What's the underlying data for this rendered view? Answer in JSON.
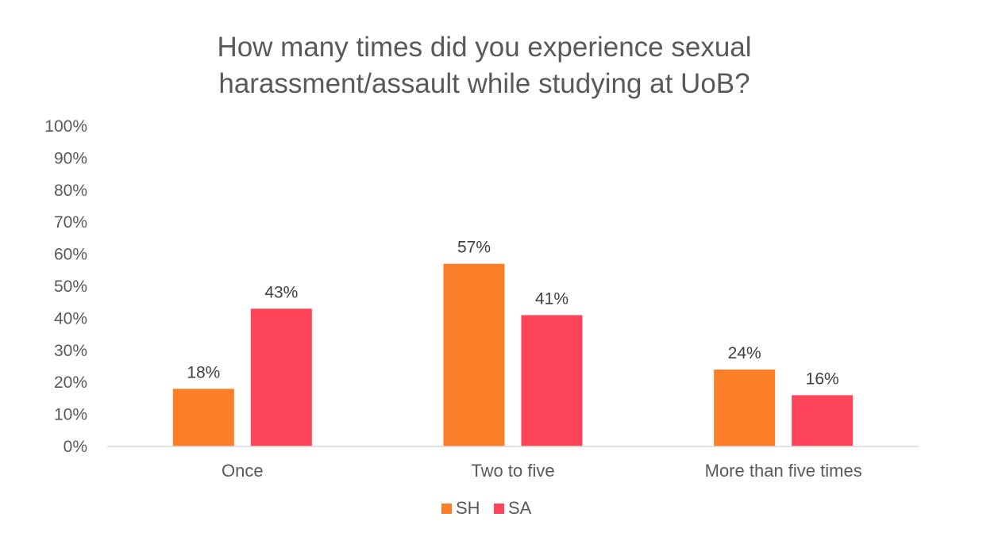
{
  "chart_data": {
    "type": "bar",
    "title": [
      "How many times did you experience sexual",
      "harassment/assault while studying at UoB?"
    ],
    "categories": [
      "Once",
      "Two to five",
      "More than five times"
    ],
    "series": [
      {
        "name": "SH",
        "values": [
          18,
          57,
          24
        ],
        "color": "#FB7E28"
      },
      {
        "name": "SA",
        "values": [
          43,
          41,
          16
        ],
        "color": "#FD4458"
      }
    ],
    "value_suffix": "%",
    "ylim": [
      0,
      100
    ],
    "yticks": [
      0,
      10,
      20,
      30,
      40,
      50,
      60,
      70,
      80,
      90,
      100
    ],
    "grid": false,
    "legend_position": "bottom"
  }
}
